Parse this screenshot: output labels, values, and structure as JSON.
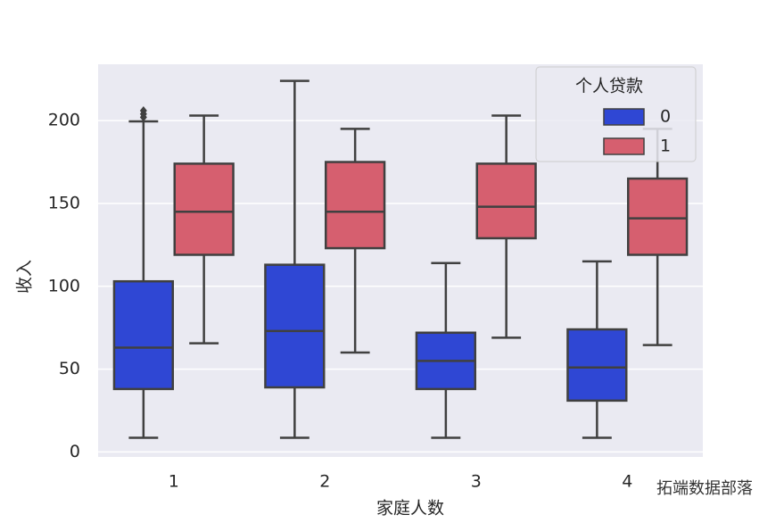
{
  "chart_data": {
    "type": "box",
    "x_label": "家庭人数",
    "y_label": "收入",
    "categories": [
      "1",
      "2",
      "3",
      "4"
    ],
    "legend_title": "个人贷款",
    "legend_position": "upper right",
    "grid": true,
    "ylim": [
      -3,
      234
    ],
    "yticks": [
      0,
      50,
      100,
      150,
      200
    ],
    "annotation": "拓端数据部落",
    "series": [
      {
        "name": "0",
        "color": "#2f47d4",
        "stats": [
          {
            "min": 8.6,
            "q1": 38,
            "median": 63,
            "q3": 103,
            "max": 199.5,
            "outliers": [
              202,
              204,
              206
            ]
          },
          {
            "min": 8.6,
            "q1": 39,
            "median": 73,
            "q3": 113,
            "max": 224,
            "outliers": []
          },
          {
            "min": 8.6,
            "q1": 38,
            "median": 55,
            "q3": 72,
            "max": 114,
            "outliers": []
          },
          {
            "min": 8.6,
            "q1": 31,
            "median": 51,
            "q3": 74,
            "max": 115,
            "outliers": []
          }
        ]
      },
      {
        "name": "1",
        "color": "#d65f6f",
        "stats": [
          {
            "min": 65.6,
            "q1": 119,
            "median": 145,
            "q3": 174,
            "max": 203,
            "outliers": []
          },
          {
            "min": 60,
            "q1": 123,
            "median": 145,
            "q3": 175,
            "max": 195,
            "outliers": []
          },
          {
            "min": 69,
            "q1": 129,
            "median": 148,
            "q3": 174,
            "max": 203,
            "outliers": []
          },
          {
            "min": 64.5,
            "q1": 119,
            "median": 141,
            "q3": 165,
            "max": 195,
            "outliers": []
          }
        ]
      }
    ]
  }
}
